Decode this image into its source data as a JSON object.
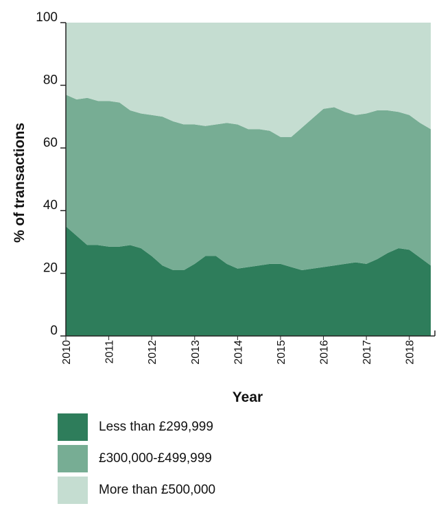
{
  "chart_data": {
    "type": "area",
    "stacked": true,
    "xlabel": "Year",
    "ylabel": "% of transactions",
    "ylim": [
      0,
      100
    ],
    "yticks": [
      0,
      20,
      40,
      60,
      80,
      100
    ],
    "xticks": [
      "2010",
      "2011",
      "2012",
      "2013",
      "2014",
      "2015",
      "2016",
      "2017",
      "2018"
    ],
    "x": [
      2010.0,
      2010.25,
      2010.5,
      2010.75,
      2011.0,
      2011.25,
      2011.5,
      2011.75,
      2012.0,
      2012.25,
      2012.5,
      2012.75,
      2013.0,
      2013.25,
      2013.5,
      2013.75,
      2014.0,
      2014.25,
      2014.5,
      2014.75,
      2015.0,
      2015.25,
      2015.5,
      2015.75,
      2016.0,
      2016.25,
      2016.5,
      2016.75,
      2017.0,
      2017.25,
      2017.5,
      2017.75,
      2018.0,
      2018.25,
      2018.5
    ],
    "series": [
      {
        "name": "Less than £299,999",
        "color": "#2e7d5b",
        "values": [
          35,
          32,
          29,
          29,
          28.5,
          28.5,
          29,
          28,
          25.5,
          22.5,
          21,
          21,
          23,
          25.5,
          25.5,
          23,
          21.5,
          22,
          22.5,
          23,
          23,
          22,
          21,
          21.5,
          22,
          22.5,
          23,
          23.5,
          23,
          24.5,
          26.5,
          28,
          27.5,
          25,
          22.5
        ]
      },
      {
        "name": "£300,000-£499,999",
        "color": "#77ad94",
        "values": [
          42,
          43.5,
          47,
          46,
          46.5,
          46,
          43,
          43,
          45,
          47.5,
          47.5,
          46.5,
          44.5,
          41.5,
          42,
          45,
          46,
          44,
          43.5,
          42.5,
          40.5,
          41.5,
          45.5,
          48,
          50.5,
          50.5,
          48.5,
          47,
          48,
          47.5,
          45.5,
          43.5,
          43,
          43,
          43.5
        ]
      },
      {
        "name": "More than £500,000",
        "color": "#c5ddd1",
        "values": [
          23,
          24.5,
          24,
          25,
          25,
          25.5,
          28,
          29,
          29.5,
          30,
          31.5,
          32.5,
          32.5,
          33,
          32.5,
          32,
          32.5,
          34,
          34,
          34.5,
          36.5,
          36.5,
          33.5,
          30.5,
          27.5,
          27,
          28.5,
          29.5,
          29,
          28,
          28,
          28.5,
          29.5,
          32,
          34
        ]
      }
    ]
  }
}
